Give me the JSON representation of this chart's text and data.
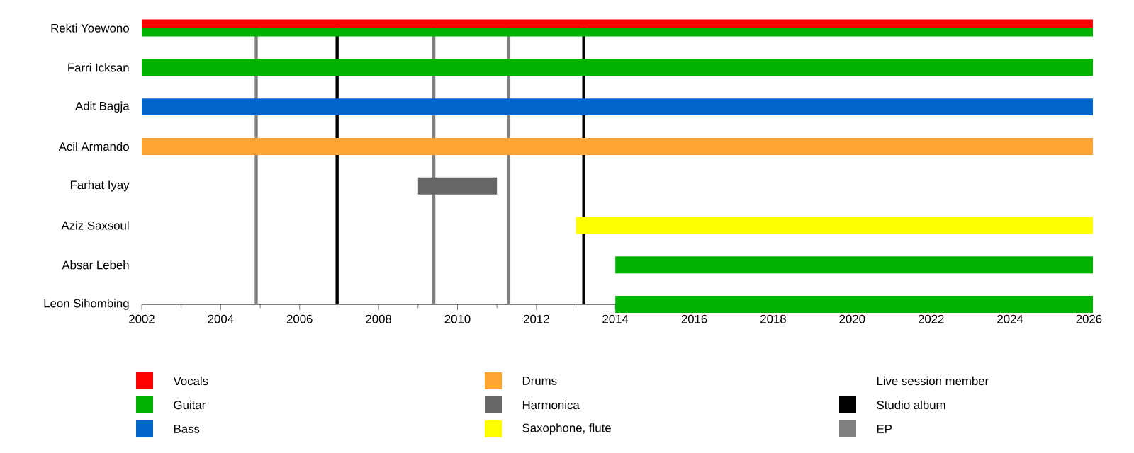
{
  "chart_data": {
    "type": "bar",
    "orientation": "horizontal",
    "categories": [
      "Rekti Yoewono",
      "Farri Icksan",
      "Adit Bagja",
      "Acil Armando",
      "Farhat Iyay",
      "Aziz Saxsoul",
      "Absar Lebeh",
      "Leon Sihombing"
    ],
    "series": [
      {
        "name": "Vocals",
        "color": "#ff0000",
        "values": [
          24.1,
          null,
          null,
          null,
          null,
          null,
          null,
          null
        ],
        "base": [
          2002,
          null,
          null,
          null,
          null,
          null,
          null,
          null
        ]
      },
      {
        "name": "Guitar",
        "color": "#00b300",
        "values": [
          24.1,
          24.1,
          null,
          null,
          null,
          null,
          12.1,
          12.1
        ],
        "base": [
          2002,
          2002,
          null,
          null,
          null,
          null,
          2014,
          2014
        ]
      },
      {
        "name": "Bass",
        "color": "#0066cc",
        "values": [
          null,
          null,
          24.1,
          null,
          null,
          null,
          null,
          null
        ],
        "base": [
          null,
          null,
          2002,
          null,
          null,
          null,
          null,
          null
        ]
      },
      {
        "name": "Drums",
        "color": "#ffa333",
        "values": [
          null,
          null,
          null,
          24.1,
          null,
          null,
          null,
          null
        ],
        "base": [
          null,
          null,
          null,
          2002,
          null,
          null,
          null,
          null
        ]
      },
      {
        "name": "Harmonica",
        "color": "#666666",
        "values": [
          null,
          null,
          null,
          null,
          2,
          null,
          null,
          null
        ],
        "base": [
          null,
          null,
          null,
          null,
          2009,
          null,
          null,
          null
        ]
      },
      {
        "name": "Saxophone, flute",
        "color": "#ffff00",
        "values": [
          null,
          null,
          null,
          null,
          null,
          13.1,
          null,
          null
        ],
        "base": [
          null,
          null,
          null,
          null,
          null,
          2013,
          null,
          null
        ]
      }
    ],
    "xlim": [
      2002,
      2026.1
    ],
    "xticks": [
      2002,
      2004,
      2006,
      2008,
      2010,
      2012,
      2014,
      2016,
      2018,
      2020,
      2022,
      2024,
      2026
    ],
    "ref_lines": [
      {
        "axis": "x",
        "value": 2006.95,
        "label": "Studio album",
        "color": "#000000"
      },
      {
        "axis": "x",
        "value": 2004.9,
        "label": "EP",
        "color": "#808080"
      },
      {
        "axis": "x",
        "value": 2009.4,
        "color": "#808080"
      },
      {
        "axis": "x",
        "value": 2011.3,
        "color": "#808080"
      },
      {
        "axis": "x",
        "value": 2013.2,
        "color": "#000000"
      }
    ],
    "annotations": [
      "Live session member"
    ],
    "legend": "bottom"
  }
}
